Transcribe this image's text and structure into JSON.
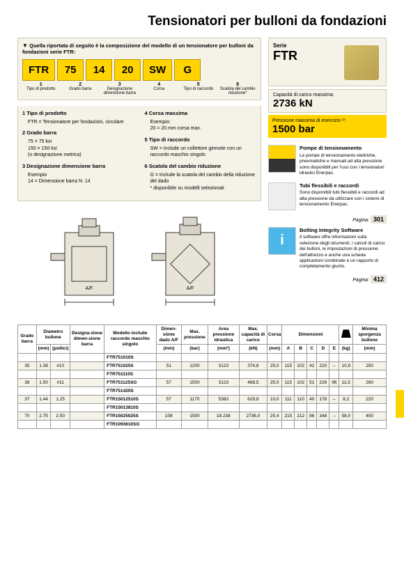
{
  "title": "Tensionatori per bulloni da fondazioni",
  "composition": {
    "heading": "Quella riportata di seguito è la composizione del modello di un tensionatore per bulloni da fondazioni serie FTR:",
    "codes": [
      "FTR",
      "75",
      "14",
      "20",
      "SW",
      "G"
    ],
    "labels": [
      {
        "n": "1",
        "t": "Tipo di prodotto"
      },
      {
        "n": "2",
        "t": "Grado barra"
      },
      {
        "n": "3",
        "t": "Designazione dimensione barra"
      },
      {
        "n": "4",
        "t": "Corsa"
      },
      {
        "n": "5",
        "t": "Tipo di raccordo"
      },
      {
        "n": "6",
        "t": "Scatola del cambio riduzione*"
      }
    ]
  },
  "defs_left": [
    {
      "title": "1 Tipo di prodotto",
      "lines": [
        "FTR = Tensionatore per fondazioni, circolare"
      ]
    },
    {
      "title": "2 Grado barra",
      "lines": [
        "75 = 75 ksi",
        "150 = 150 ksi",
        "(o designazione metrica)"
      ]
    },
    {
      "title": "3 Designazione dimensione barra",
      "lines": [
        "Esempio",
        "14 = Dimensione barra N. 14"
      ]
    }
  ],
  "defs_right": [
    {
      "title": "4 Corsa massima",
      "lines": [
        "Esempio:",
        "20 = 20 mm corsa max."
      ]
    },
    {
      "title": "5 Tipo di raccordo",
      "lines": [
        "SW = Include un collettore girevole con un raccordo maschio singolo"
      ]
    },
    {
      "title": "6 Scatola del cambio riduzione",
      "lines": [
        "G = Include la scatola del cambio della riduzione del dado",
        "* disponibile su modelli selezionati"
      ]
    }
  ],
  "series": {
    "label": "Serie",
    "name": "FTR"
  },
  "capacity": {
    "label": "Capacità di carico massima:",
    "value": "2736 kN"
  },
  "pressure": {
    "label": "Pressione massima di esercizio ¹⁾:",
    "value": "1500 bar"
  },
  "info": [
    {
      "img": "pump",
      "title": "Pompe di tensionamento",
      "text": "Le pompe di tensionamento elettriche, pneumatiche e manuali ad alta pressione sono disponibili per l'uso con i tensionatori idraulici Enerpac."
    },
    {
      "img": "hose",
      "title": "Tubi flessibili e raccordi",
      "text": "Sono disponibili tubi flessibili e raccordi ad alta pressione da utilizzare con i sistemi di tensionamento Enerpac."
    }
  ],
  "pagina1": "301",
  "software": {
    "title": "Bolting Integrity Software",
    "text": "Il software offre informazioni sulla selezione degli strumenti, i calcoli di carico dei bulloni, le impostazioni di pressione dell'attrezzo e anche una scheda applicazioni combinate e un rapporto di completamento giunto."
  },
  "pagina2": "412",
  "paginaLabel": "Pagina:",
  "table": {
    "headers": {
      "grado": "Grado barra",
      "diametro": "Diametro bullone",
      "desig": "Designa-zione dimen-sione barra",
      "modello": "Modello include raccordo maschio singolo",
      "dimdado": "Dimen-sione dado A/F",
      "maxpres": "Max. pressione",
      "area": "Area pressione idraulica",
      "maxcap": "Max. capacità di carico",
      "corsa": "Corsa",
      "dimensioni": "Dimensioni",
      "peso": "",
      "sporg": "Minima sporgenza bullone",
      "mm": "(mm)",
      "mm2": "(mm)",
      "pollici": "(pollici)",
      "bar": "(bar)",
      "mm2a": "(mm²)",
      "kn": "(kN)",
      "kg": "(kg)",
      "A": "A",
      "B": "B",
      "C": "C",
      "D": "D",
      "E": "E"
    },
    "rows": [
      {
        "model": "FTR751010S"
      },
      {
        "g": "35",
        "d1": "1.38",
        "d2": "#10",
        "model": "FTR751025S",
        "dado": "51",
        "pres": "1200",
        "area": "3123",
        "cap": "374,8",
        "corsa": "25,0",
        "A": "115",
        "B": "102",
        "C": "42",
        "D": "220",
        "E": "–",
        "kg": "10,9",
        "sp": "250"
      },
      {
        "model": "FTR751110S"
      },
      {
        "g": "38",
        "d1": "1.50",
        "d2": "#11",
        "model": "FTR751125SG",
        "dado": "57",
        "pres": "1500",
        "area": "3123",
        "cap": "468,5",
        "corsa": "25,0",
        "A": "115",
        "B": "102",
        "C": "51",
        "D": "226",
        "E": "96",
        "kg": "11,5",
        "sp": "260"
      },
      {
        "model": "FTR751420S"
      },
      {
        "g": "37",
        "d1": "1.44",
        "d2": "1.25",
        "model": "FTR15012510S",
        "dado": "57",
        "pres": "1170",
        "area": "5383",
        "cap": "629,8",
        "corsa": "10,0",
        "A": "111",
        "B": "110",
        "C": "40",
        "D": "178",
        "E": "–",
        "kg": "8,2",
        "sp": "220"
      },
      {
        "model": "FTR15013810S"
      },
      {
        "g": "70",
        "d1": "2.75",
        "d2": "2.50",
        "model": "FTR15025025S",
        "dado": "108",
        "pres": "1500",
        "area": "18.238",
        "cap": "2736,0",
        "corsa": "25,4",
        "A": "215",
        "B": "212",
        "C": "86",
        "D": "348",
        "E": "–",
        "kg": "58,0",
        "sp": "450"
      },
      {
        "model": "FTR1093610SG"
      }
    ]
  },
  "af": "A/F"
}
